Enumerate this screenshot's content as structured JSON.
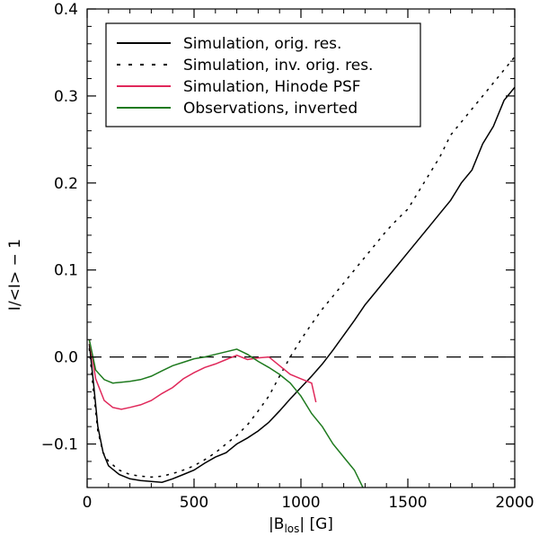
{
  "chart_data": {
    "type": "line",
    "xlabel_main": "|B",
    "xlabel_sub": "los",
    "xlabel_tail": "| [G]",
    "ylabel": "I/<I> − 1",
    "xlim": [
      0,
      2000
    ],
    "ylim": [
      -0.15,
      0.4
    ],
    "x_ticks": [
      0,
      500,
      1000,
      1500,
      2000
    ],
    "y_ticks": [
      -0.1,
      0.0,
      0.1,
      0.2,
      0.3,
      0.4
    ],
    "y_tick_labels": [
      "−0.1",
      "0.0",
      "0.1",
      "0.2",
      "0.3",
      "0.4"
    ],
    "reference_line": {
      "y": 0.0,
      "style": "dashed"
    },
    "legend": {
      "placement": "top-left"
    },
    "series": [
      {
        "name": "Simulation, orig. res.",
        "color": "#000000",
        "style": "solid",
        "x": [
          10,
          30,
          50,
          75,
          100,
          150,
          200,
          250,
          300,
          350,
          400,
          450,
          500,
          550,
          600,
          650,
          700,
          750,
          800,
          850,
          900,
          950,
          1000,
          1050,
          1100,
          1150,
          1200,
          1250,
          1300,
          1350,
          1400,
          1450,
          1500,
          1550,
          1600,
          1650,
          1700,
          1750,
          1800,
          1850,
          1900,
          1950,
          2000
        ],
        "y": [
          0.015,
          -0.03,
          -0.08,
          -0.11,
          -0.125,
          -0.135,
          -0.14,
          -0.142,
          -0.143,
          -0.144,
          -0.14,
          -0.135,
          -0.13,
          -0.122,
          -0.115,
          -0.11,
          -0.1,
          -0.093,
          -0.085,
          -0.075,
          -0.062,
          -0.048,
          -0.035,
          -0.022,
          -0.008,
          0.008,
          0.025,
          0.042,
          0.06,
          0.075,
          0.09,
          0.105,
          0.12,
          0.135,
          0.15,
          0.165,
          0.18,
          0.2,
          0.215,
          0.245,
          0.265,
          0.295,
          0.31
        ]
      },
      {
        "name": "Simulation, inv. orig. res.",
        "color": "#000000",
        "style": "dotted",
        "x": [
          10,
          30,
          50,
          75,
          100,
          150,
          200,
          250,
          300,
          350,
          400,
          450,
          500,
          550,
          600,
          650,
          700,
          750,
          800,
          850,
          900,
          950,
          1000,
          1050,
          1100,
          1150,
          1200,
          1250,
          1300,
          1350,
          1400,
          1450,
          1500,
          1550,
          1600,
          1650,
          1700,
          1750,
          1800,
          1850,
          1900,
          1950,
          2000
        ],
        "y": [
          0.01,
          -0.04,
          -0.085,
          -0.11,
          -0.12,
          -0.13,
          -0.135,
          -0.137,
          -0.138,
          -0.137,
          -0.134,
          -0.13,
          -0.125,
          -0.118,
          -0.11,
          -0.1,
          -0.09,
          -0.078,
          -0.062,
          -0.045,
          -0.022,
          0.0,
          0.02,
          0.038,
          0.055,
          0.07,
          0.085,
          0.1,
          0.115,
          0.13,
          0.145,
          0.158,
          0.17,
          0.19,
          0.21,
          0.23,
          0.255,
          0.27,
          0.285,
          0.3,
          0.315,
          0.33,
          0.345
        ]
      },
      {
        "name": "Simulation, Hinode PSF",
        "color": "#e0285a",
        "style": "solid",
        "x": [
          10,
          40,
          80,
          120,
          160,
          200,
          250,
          300,
          350,
          400,
          450,
          500,
          550,
          600,
          650,
          700,
          750,
          800,
          850,
          900,
          950,
          1000,
          1050,
          1070
        ],
        "y": [
          0.02,
          -0.025,
          -0.05,
          -0.058,
          -0.06,
          -0.058,
          -0.055,
          -0.05,
          -0.042,
          -0.035,
          -0.025,
          -0.018,
          -0.012,
          -0.008,
          -0.003,
          0.002,
          -0.003,
          -0.001,
          0.0,
          -0.01,
          -0.02,
          -0.025,
          -0.03,
          -0.052
        ]
      },
      {
        "name": "Observations, inverted",
        "color": "#1e7a1e",
        "style": "solid",
        "x": [
          10,
          40,
          80,
          120,
          160,
          200,
          250,
          300,
          350,
          400,
          450,
          500,
          550,
          600,
          650,
          700,
          750,
          800,
          850,
          900,
          950,
          1000,
          1050,
          1100,
          1150,
          1200,
          1250,
          1290
        ],
        "y": [
          0.02,
          -0.015,
          -0.026,
          -0.03,
          -0.029,
          -0.028,
          -0.026,
          -0.022,
          -0.016,
          -0.01,
          -0.006,
          -0.002,
          0.0,
          0.003,
          0.006,
          0.009,
          0.003,
          -0.005,
          -0.012,
          -0.02,
          -0.03,
          -0.045,
          -0.065,
          -0.08,
          -0.1,
          -0.115,
          -0.13,
          -0.15
        ]
      }
    ]
  }
}
